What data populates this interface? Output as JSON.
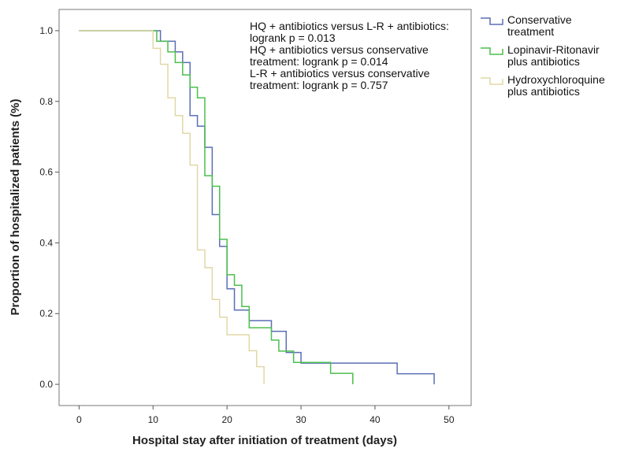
{
  "chart_data": {
    "type": "step",
    "xlabel": "Hospital stay after initiation of treatment (days)",
    "ylabel": "Proportion of hospitalized patients (%)",
    "xlim": [
      -2.7,
      53
    ],
    "ylim": [
      -0.06,
      1.06
    ],
    "xticks": [
      0,
      10,
      20,
      30,
      40,
      50
    ],
    "yticks": [
      {
        "value": 0,
        "label": "0.0"
      },
      {
        "value": 0.2,
        "label": "0.2"
      },
      {
        "value": 0.4,
        "label": "0.4"
      },
      {
        "value": 0.6,
        "label": "0.6"
      },
      {
        "value": 0.8,
        "label": "0.8"
      },
      {
        "value": 1,
        "label": "1.0"
      }
    ],
    "legend": "outside-right",
    "annotations": [
      "HQ + antibiotics versus L-R + antibiotics: logrank p = 0.013",
      "HQ + antibiotics versus conservative treatment: logrank p = 0.014",
      "L-R + antibiotics versus conservative treatment: logrank p = 0.757"
    ],
    "series": [
      {
        "name": "Conservative treatment",
        "color": "#5b6fb6",
        "x": [
          0,
          11,
          13,
          14,
          15,
          16,
          17,
          18,
          19,
          20,
          21,
          23,
          26,
          28,
          30,
          43,
          48
        ],
        "values": [
          1,
          0.97,
          0.94,
          0.91,
          0.76,
          0.73,
          0.67,
          0.48,
          0.39,
          0.27,
          0.21,
          0.18,
          0.15,
          0.09,
          0.06,
          0.03,
          0
        ]
      },
      {
        "name": "Lopinavir-Ritonavir plus antibiotics",
        "color": "#4cbf4c",
        "x": [
          0,
          10.5,
          12,
          13,
          14,
          15,
          16,
          17,
          18,
          19,
          20,
          21,
          22,
          23,
          26,
          27,
          29,
          34,
          37
        ],
        "values": [
          1,
          0.97,
          0.94,
          0.91,
          0.875,
          0.84,
          0.81,
          0.59,
          0.56,
          0.41,
          0.31,
          0.28,
          0.22,
          0.16,
          0.125,
          0.094,
          0.062,
          0.031,
          0
        ]
      },
      {
        "name": "Hydroxychloroquine plus antibiotics",
        "color": "#e0d8a6",
        "x": [
          0,
          10,
          11,
          12,
          13,
          14,
          15,
          16,
          17,
          18,
          19,
          20,
          23,
          24,
          25
        ],
        "values": [
          1,
          0.95,
          0.905,
          0.81,
          0.76,
          0.71,
          0.62,
          0.38,
          0.33,
          0.24,
          0.19,
          0.14,
          0.095,
          0.05,
          0
        ]
      }
    ]
  }
}
